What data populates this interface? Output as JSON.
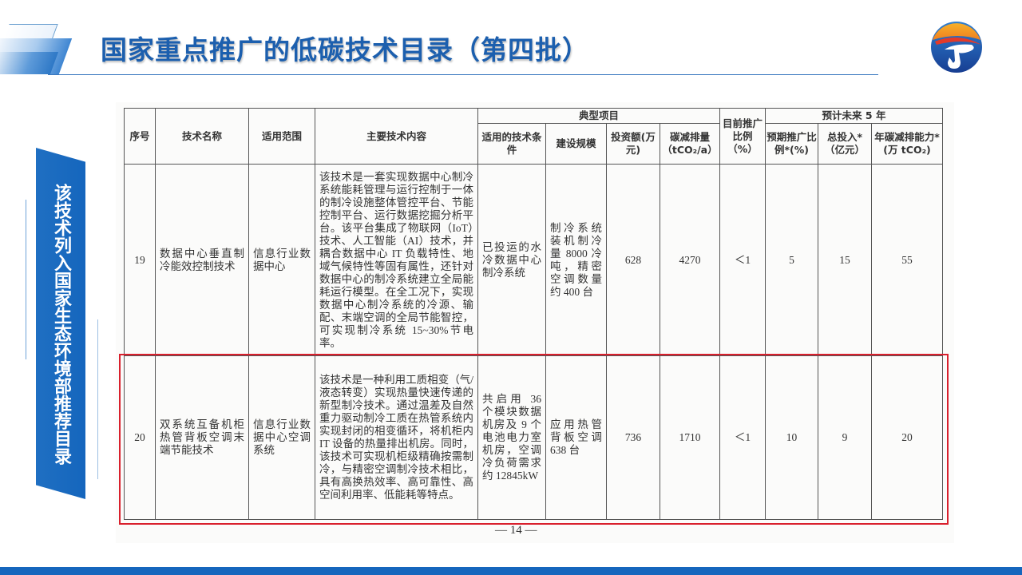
{
  "header": {
    "title": "国家重点推广的低碳技术目录（第四批）"
  },
  "banner": {
    "text": "该技术列入国家生态环境部推荐目录"
  },
  "colors": {
    "brand_blue": "#1c5fae",
    "banner_blue": "#1566bd",
    "highlight_red": "#d9202d"
  },
  "table": {
    "headers": {
      "seq": "序号",
      "name": "技术名称",
      "scope": "适用范围",
      "content": "主要技术内容",
      "typical_group": "典型项目",
      "conditions": "适用的技术条件",
      "scale": "建设规模",
      "investment": "投资额(万元)",
      "reduction": "碳减排量（tCO₂/a）",
      "current_ratio": "目前推广比例（%）",
      "forecast_group": "预计未来 5 年",
      "expected_ratio": "预期推广比例*(%)",
      "total_investment": "总投入*（亿元）",
      "annual_capacity": "年碳减排能力*(万 tCO₂)"
    },
    "rows": [
      {
        "seq": "19",
        "name": "数据中心垂直制冷能效控制技术",
        "scope": "信息行业数据中心",
        "content": "该技术是一套实现数据中心制冷系统能耗管理与运行控制于一体的制冷设施整体管控平台、节能控制平台、运行数据挖掘分析平台。该平台集成了物联网（IoT）技术、人工智能（AI）技术，并耦合数据中心 IT 负载特性、地域气候特性等固有属性，还针对数据中心的制冷系统建立全局能耗运行模型。在全工况下，实现数据中心制冷系统的冷源、输配、末端空调的全局节能智控，可实现制冷系统 15~30%节电率。",
        "conditions": "已投运的水冷数据中心制冷系统",
        "scale": "制冷系统装机制冷量 8000 冷吨，精密空调数量约 400 台",
        "investment": "628",
        "reduction": "4270",
        "current_ratio": "＜1",
        "expected_ratio": "5",
        "total_investment": "15",
        "annual_capacity": "55"
      },
      {
        "seq": "20",
        "name": "双系统互备机柜热管背板空调末端节能技术",
        "scope": "信息行业数据中心空调系统",
        "content": "该技术是一种利用工质相变（气/液态转变）实现热量快速传递的新型制冷技术。通过温差及自然重力驱动制冷工质在热管系统内实现封闭的相变循环，将机柜内 IT 设备的热量排出机房。同时，该技术可实现机柜级精确按需制冷，与精密空调制冷技术相比，具有高换热效率、高可靠性、高空间利用率、低能耗等特点。",
        "conditions": "共启用 36 个模块数据机房及 9 个电池电力室机房，空调冷负荷需求约 12845kW",
        "scale": "应用热管背板空调 638 台",
        "investment": "736",
        "reduction": "1710",
        "current_ratio": "＜1",
        "expected_ratio": "10",
        "total_investment": "9",
        "annual_capacity": "20"
      }
    ]
  },
  "page_number": "— 14 —"
}
